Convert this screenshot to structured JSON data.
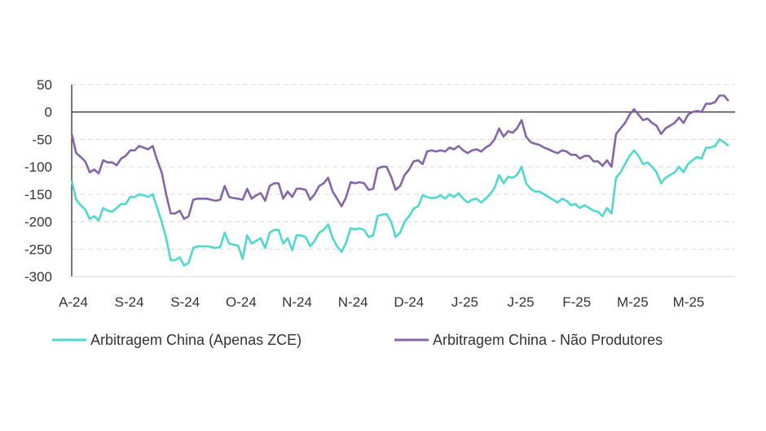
{
  "chart_data": {
    "type": "line",
    "title": "",
    "xlabel": "",
    "ylabel": "",
    "ylim": [
      -300,
      50
    ],
    "yticks": [
      50,
      0,
      -50,
      -100,
      -150,
      -200,
      -250,
      -300
    ],
    "xtick_labels": [
      "A-24",
      "S-24",
      "S-24",
      "O-24",
      "N-24",
      "N-24",
      "D-24",
      "J-25",
      "J-25",
      "F-25",
      "M-25",
      "M-25"
    ],
    "grid": "horizontal dashed",
    "zero_line": true,
    "legend_position": "bottom",
    "series": [
      {
        "name": "Arbitragem China (Apenas ZCE)",
        "color": "#4ed8cf",
        "values": [
          -125,
          -160,
          -170,
          -178,
          -195,
          -190,
          -198,
          -175,
          -180,
          -182,
          -175,
          -168,
          -168,
          -155,
          -155,
          -150,
          -152,
          -155,
          -150,
          -175,
          -200,
          -230,
          -270,
          -270,
          -265,
          -280,
          -275,
          -248,
          -245,
          -245,
          -245,
          -246,
          -248,
          -246,
          -220,
          -240,
          -242,
          -244,
          -268,
          -225,
          -240,
          -235,
          -230,
          -248,
          -220,
          -215,
          -215,
          -240,
          -230,
          -252,
          -225,
          -225,
          -228,
          -245,
          -235,
          -220,
          -215,
          -205,
          -230,
          -245,
          -255,
          -238,
          -212,
          -214,
          -212,
          -215,
          -228,
          -225,
          -190,
          -187,
          -186,
          -200,
          -228,
          -220,
          -200,
          -190,
          -176,
          -172,
          -152,
          -155,
          -157,
          -156,
          -152,
          -158,
          -150,
          -155,
          -148,
          -158,
          -165,
          -160,
          -158,
          -165,
          -158,
          -150,
          -138,
          -115,
          -130,
          -118,
          -120,
          -115,
          -100,
          -130,
          -140,
          -145,
          -145,
          -150,
          -155,
          -160,
          -165,
          -158,
          -162,
          -170,
          -168,
          -175,
          -170,
          -175,
          -180,
          -182,
          -190,
          -175,
          -185,
          -120,
          -110,
          -95,
          -80,
          -70,
          -80,
          -95,
          -92,
          -100,
          -110,
          -130,
          -120,
          -115,
          -110,
          -100,
          -110,
          -95,
          -88,
          -82,
          -85,
          -65,
          -65,
          -62,
          -50,
          -55,
          -62
        ]
      },
      {
        "name": "Arbitragem China - Não Produtores",
        "color": "#8466a6",
        "values": [
          -40,
          -75,
          -82,
          -90,
          -110,
          -105,
          -112,
          -88,
          -92,
          -92,
          -97,
          -85,
          -80,
          -70,
          -70,
          -62,
          -65,
          -68,
          -62,
          -88,
          -110,
          -150,
          -185,
          -185,
          -180,
          -195,
          -190,
          -160,
          -158,
          -158,
          -158,
          -160,
          -162,
          -160,
          -135,
          -155,
          -157,
          -158,
          -160,
          -140,
          -158,
          -152,
          -148,
          -162,
          -135,
          -130,
          -130,
          -158,
          -145,
          -155,
          -140,
          -140,
          -142,
          -160,
          -150,
          -135,
          -130,
          -120,
          -145,
          -158,
          -172,
          -155,
          -128,
          -130,
          -128,
          -130,
          -142,
          -140,
          -103,
          -100,
          -100,
          -118,
          -142,
          -135,
          -115,
          -105,
          -90,
          -88,
          -95,
          -72,
          -70,
          -72,
          -70,
          -72,
          -65,
          -68,
          -62,
          -70,
          -75,
          -70,
          -68,
          -72,
          -65,
          -60,
          -50,
          -30,
          -45,
          -35,
          -38,
          -30,
          -15,
          -45,
          -55,
          -58,
          -60,
          -65,
          -68,
          -72,
          -75,
          -70,
          -72,
          -78,
          -78,
          -85,
          -80,
          -80,
          -90,
          -90,
          -98,
          -88,
          -100,
          -40,
          -30,
          -20,
          -5,
          5,
          -5,
          -15,
          -12,
          -20,
          -25,
          -40,
          -30,
          -25,
          -20,
          -10,
          -20,
          -5,
          0,
          2,
          0,
          15,
          15,
          18,
          30,
          30,
          20
        ]
      }
    ]
  }
}
